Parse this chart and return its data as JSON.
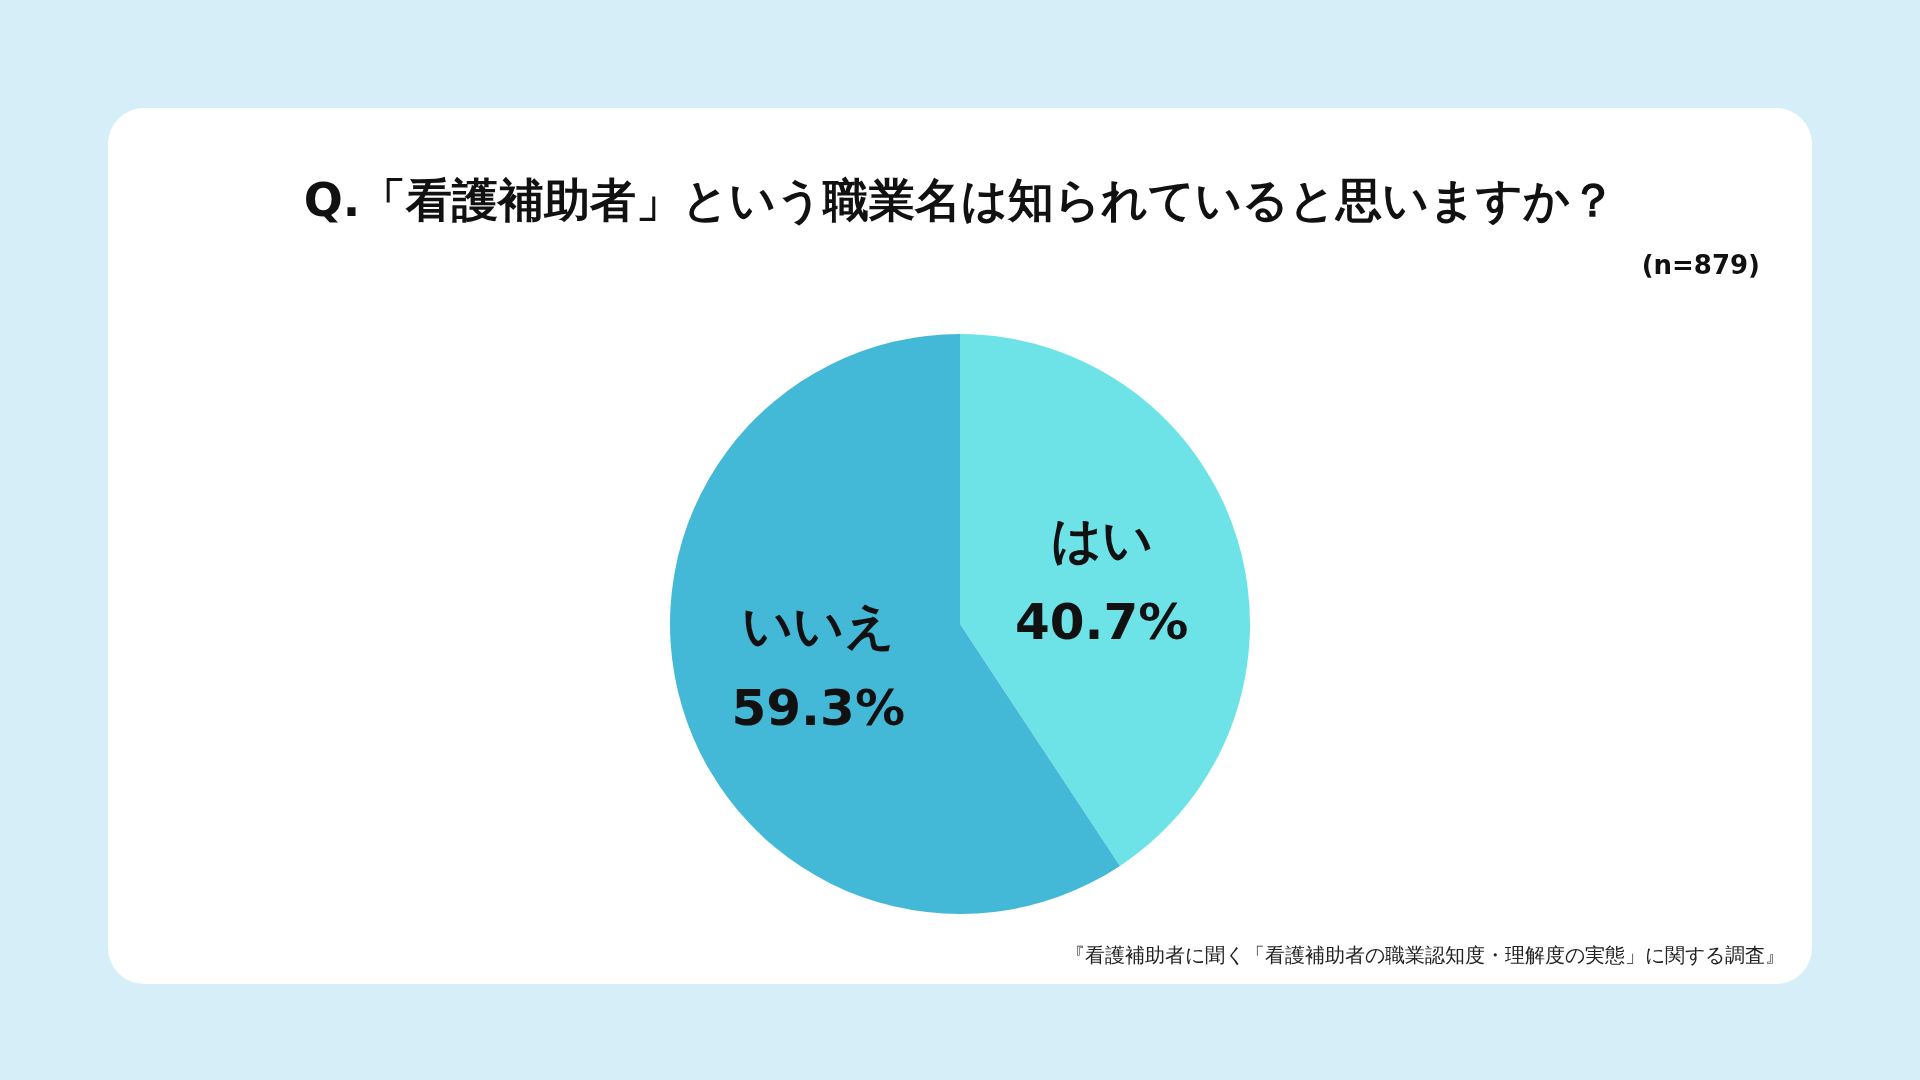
{
  "chart_data": {
    "type": "pie",
    "title": "Q.「看護補助者」という職業名は知られていると思いますか？",
    "subtitle": "(n=879)",
    "categories": [
      "はい",
      "いいえ"
    ],
    "values": [
      40.7,
      59.3
    ],
    "colors": [
      "#6de3e8",
      "#44b8d7"
    ],
    "value_labels": [
      "40.7%",
      "59.3%"
    ],
    "annotations": [
      "『看護補助者に聞く「看護補助者の職業認知度・理解度の実態」に関する調査』"
    ]
  }
}
